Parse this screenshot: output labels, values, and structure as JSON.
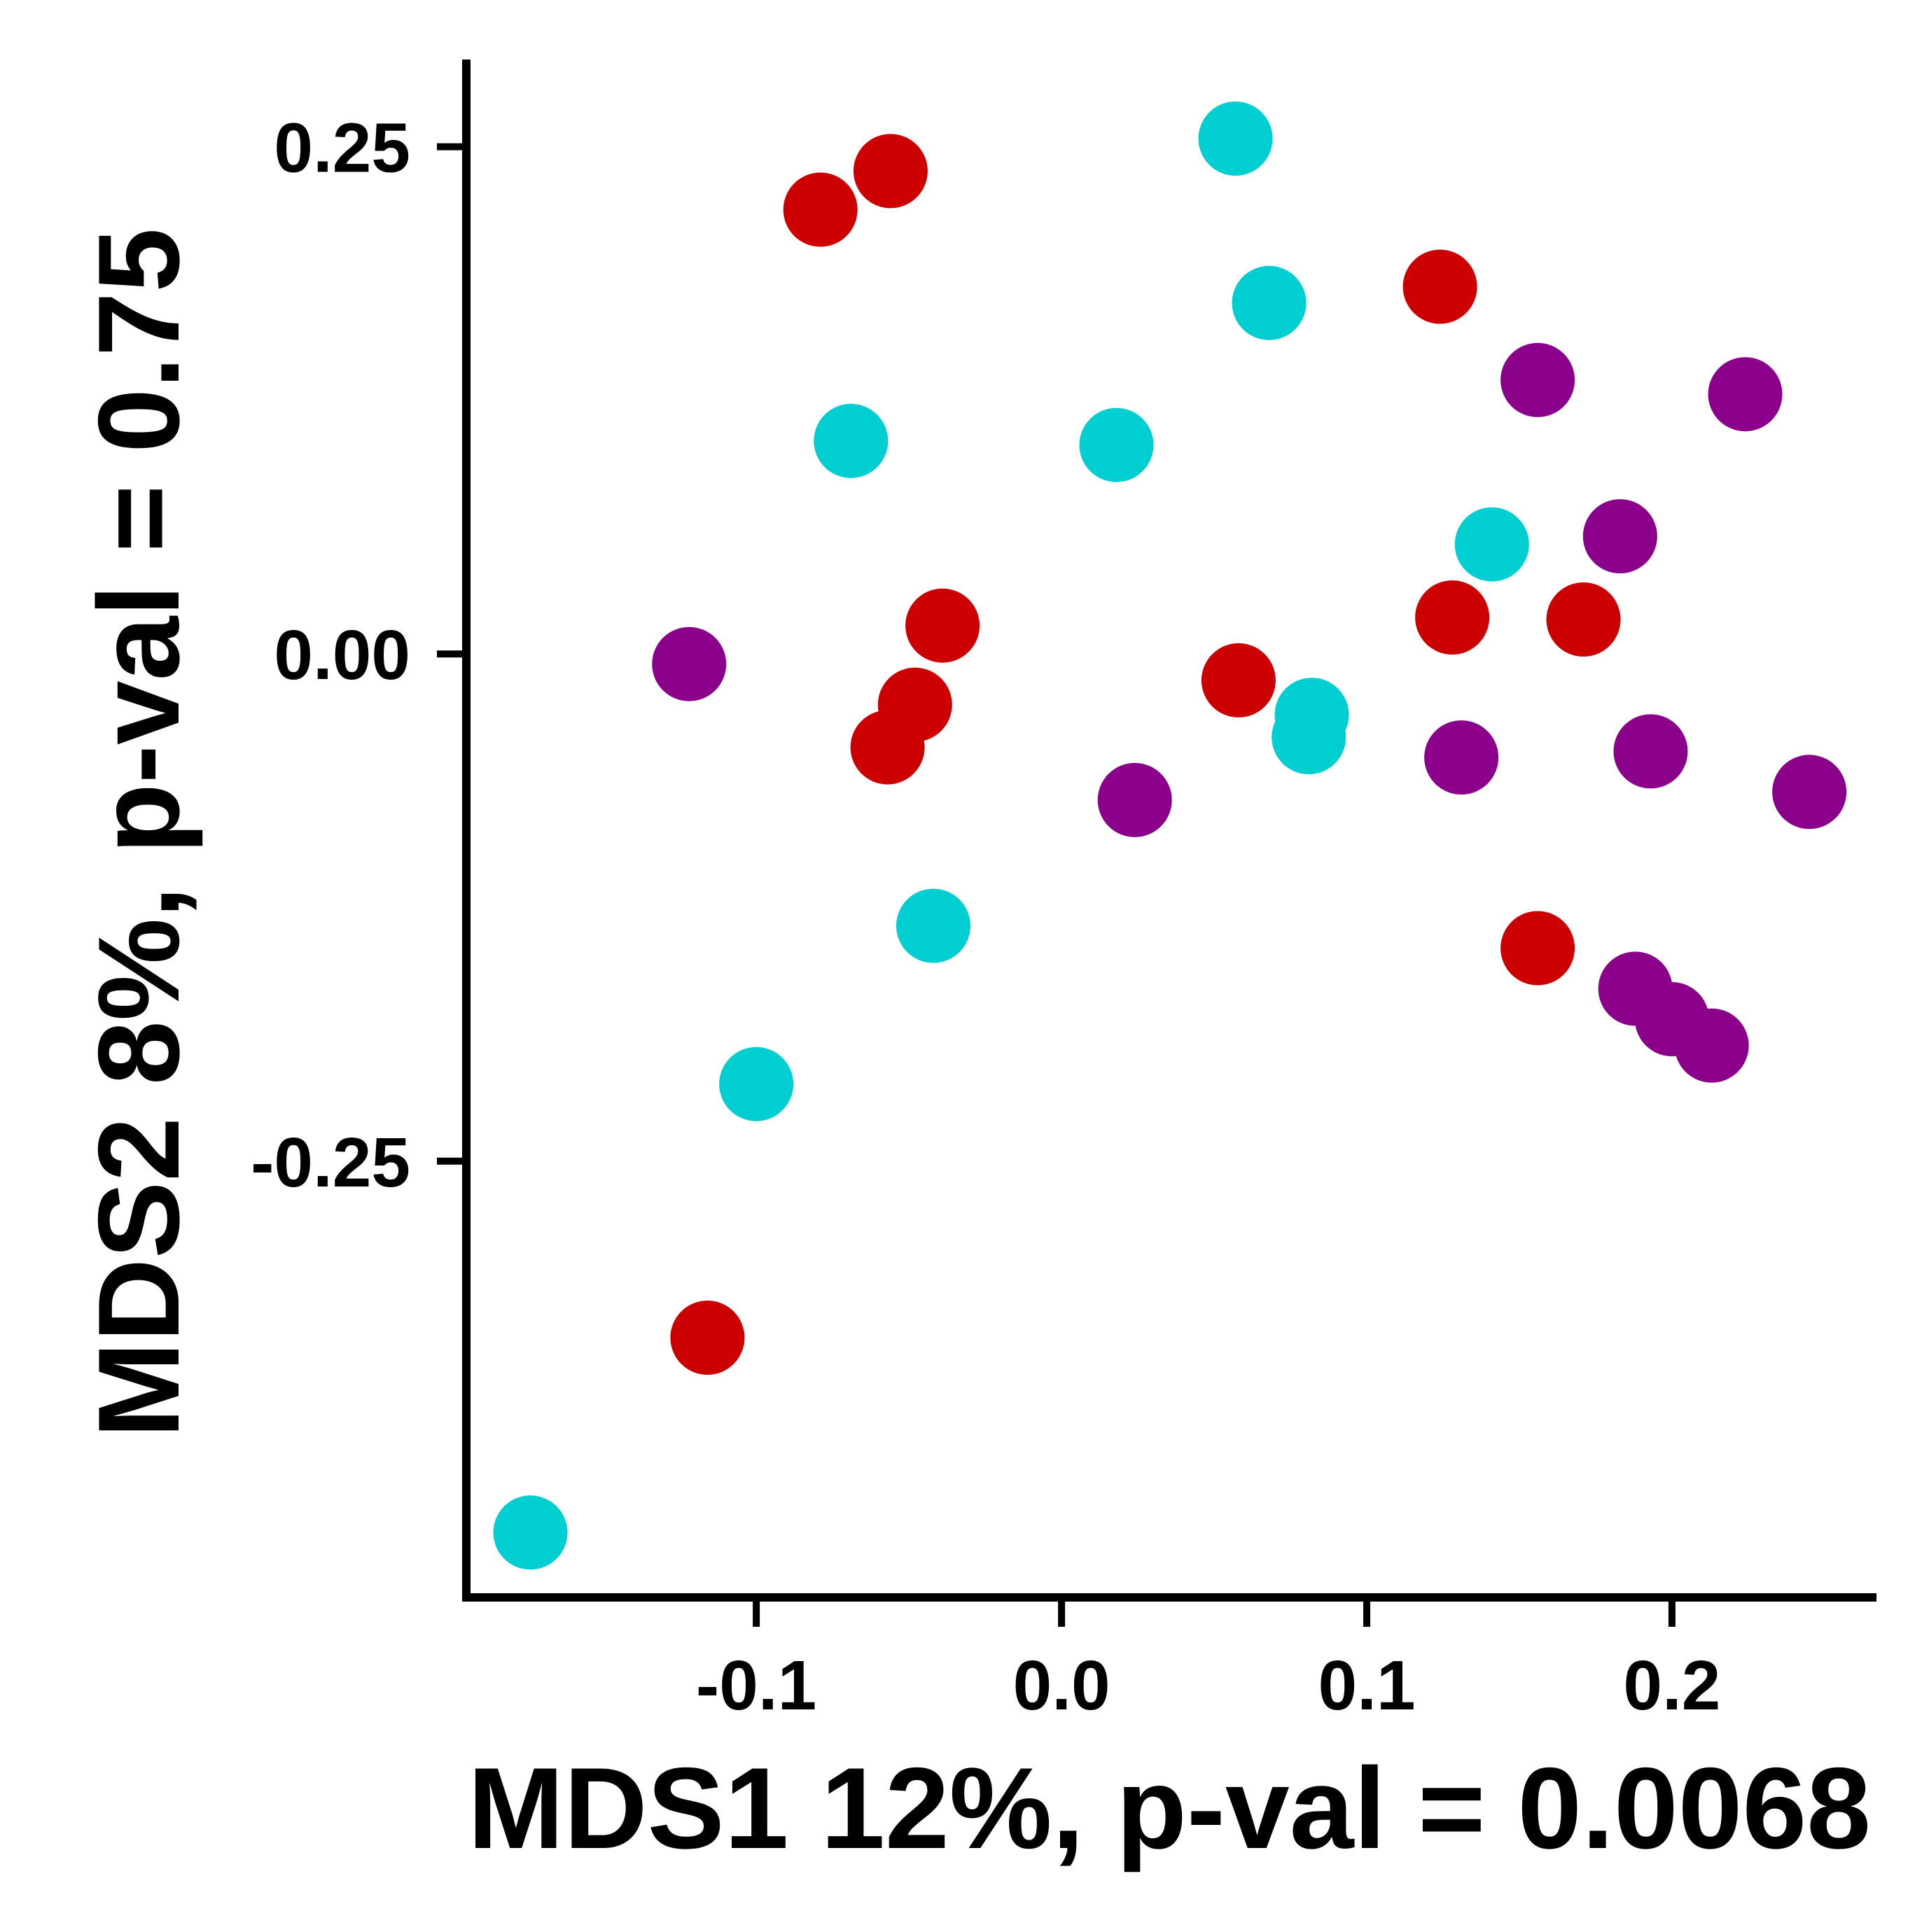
{
  "chart_data": {
    "type": "scatter",
    "title": "",
    "xlabel": "MDS1 12%, p-val = 0.0068",
    "ylabel": "MDS2 8%, p-val = 0.75",
    "xlim": [
      -0.195,
      0.267
    ],
    "ylim": [
      -0.465,
      0.293
    ],
    "xticks": [
      {
        "value": -0.1,
        "label": "-0.1"
      },
      {
        "value": 0.0,
        "label": "0.0"
      },
      {
        "value": 0.1,
        "label": "0.1"
      },
      {
        "value": 0.2,
        "label": "0.2"
      }
    ],
    "yticks": [
      {
        "value": 0.25,
        "label": "0.25"
      },
      {
        "value": 0.0,
        "label": "0.00"
      },
      {
        "value": -0.25,
        "label": "-0.25"
      }
    ],
    "grid": false,
    "legend": "none",
    "series": [
      {
        "color": "#CC0000",
        "points": [
          {
            "x": -0.079,
            "y": 0.219
          },
          {
            "x": -0.056,
            "y": 0.238
          },
          {
            "x": 0.124,
            "y": 0.181
          },
          {
            "x": -0.039,
            "y": 0.014
          },
          {
            "x": -0.048,
            "y": -0.025
          },
          {
            "x": -0.057,
            "y": -0.046
          },
          {
            "x": 0.058,
            "y": -0.013
          },
          {
            "x": 0.128,
            "y": 0.018
          },
          {
            "x": 0.171,
            "y": 0.017
          },
          {
            "x": 0.156,
            "y": -0.145
          },
          {
            "x": -0.116,
            "y": -0.337
          }
        ]
      },
      {
        "color": "#00CED1",
        "points": [
          {
            "x": 0.057,
            "y": 0.254
          },
          {
            "x": 0.068,
            "y": 0.173
          },
          {
            "x": -0.069,
            "y": 0.105
          },
          {
            "x": 0.018,
            "y": 0.103
          },
          {
            "x": 0.141,
            "y": 0.054
          },
          {
            "x": 0.082,
            "y": -0.03
          },
          {
            "x": 0.081,
            "y": -0.041
          },
          {
            "x": -0.042,
            "y": -0.134
          },
          {
            "x": -0.1,
            "y": -0.212
          },
          {
            "x": -0.174,
            "y": -0.433
          }
        ]
      },
      {
        "color": "#8B008B",
        "points": [
          {
            "x": -0.122,
            "y": -0.005
          },
          {
            "x": 0.156,
            "y": 0.135
          },
          {
            "x": 0.224,
            "y": 0.128
          },
          {
            "x": 0.183,
            "y": 0.058
          },
          {
            "x": 0.024,
            "y": -0.072
          },
          {
            "x": 0.131,
            "y": -0.051
          },
          {
            "x": 0.193,
            "y": -0.048
          },
          {
            "x": 0.245,
            "y": -0.068
          },
          {
            "x": 0.188,
            "y": -0.165
          },
          {
            "x": 0.2,
            "y": -0.18
          },
          {
            "x": 0.213,
            "y": -0.193
          }
        ]
      }
    ]
  }
}
